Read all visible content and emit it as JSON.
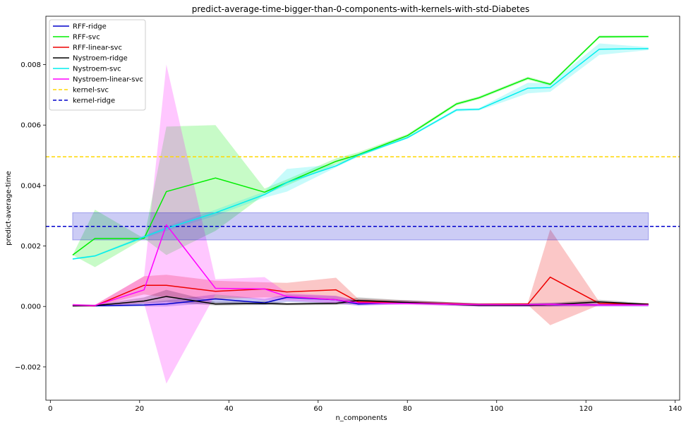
{
  "chart_data": {
    "type": "line",
    "title": "predict-average-time-bigger-than-0-components-with-kernels-with-std-Diabetes",
    "xlabel": "n_components",
    "ylabel": "predict-average-time",
    "xlim": [
      -1,
      141
    ],
    "ylim": [
      -0.0031,
      0.0096
    ],
    "xticks": [
      0,
      20,
      40,
      60,
      80,
      100,
      120,
      140
    ],
    "xtick_labels": [
      "0",
      "20",
      "40",
      "60",
      "80",
      "100",
      "120",
      "140"
    ],
    "yticks": [
      -0.002,
      0.0,
      0.002,
      0.004,
      0.006,
      0.008
    ],
    "ytick_labels": [
      "−0.002",
      "0.000",
      "0.002",
      "0.004",
      "0.006",
      "0.008"
    ],
    "grid": false,
    "legend_position": "top-left",
    "series": [
      {
        "name": "RFF-ridge",
        "color": "#0000cc",
        "style": "solid",
        "x": [
          5,
          10,
          21,
          26,
          37,
          48,
          53,
          64,
          69,
          80,
          96,
          107,
          112,
          123,
          134
        ],
        "y": [
          3e-05,
          2e-05,
          5e-05,
          8e-05,
          0.00025,
          0.00012,
          0.0003,
          0.00022,
          8e-05,
          0.00013,
          5e-05,
          4e-05,
          6e-05,
          5e-05,
          6e-05
        ],
        "lower": [
          0.0,
          0.0,
          0.0,
          0.0,
          0.00012,
          5e-05,
          0.00015,
          0.0001,
          2e-05,
          8e-05,
          0.0,
          0.0,
          0.0,
          0.0,
          0.0
        ],
        "upper": [
          8e-05,
          5e-05,
          0.00012,
          0.0002,
          0.0004,
          0.00025,
          0.0004,
          0.00035,
          0.00018,
          0.0002,
          0.0001,
          0.0001,
          0.00012,
          0.0001,
          0.0001
        ]
      },
      {
        "name": "RFF-svc",
        "color": "#00ee00",
        "style": "solid",
        "x": [
          5,
          10,
          21,
          26,
          37,
          48,
          53,
          64,
          69,
          80,
          91,
          96,
          107,
          112,
          123,
          134
        ],
        "y": [
          0.0017,
          0.00225,
          0.00225,
          0.0038,
          0.00425,
          0.00378,
          0.0041,
          0.0048,
          0.00502,
          0.00565,
          0.0067,
          0.0069,
          0.00755,
          0.00735,
          0.00892,
          0.00893
        ],
        "lower": [
          0.0017,
          0.0013,
          0.00225,
          0.0017,
          0.0025,
          0.0037,
          0.004,
          0.0047,
          0.00495,
          0.0056,
          0.00665,
          0.00685,
          0.0075,
          0.0073,
          0.00888,
          0.0089
        ],
        "upper": [
          0.0017,
          0.0032,
          0.00225,
          0.00595,
          0.006,
          0.0039,
          0.0042,
          0.0049,
          0.0051,
          0.0057,
          0.00675,
          0.00695,
          0.0076,
          0.0074,
          0.00896,
          0.00896
        ]
      },
      {
        "name": "RFF-linear-svc",
        "color": "#ee0000",
        "style": "solid",
        "x": [
          5,
          10,
          21,
          26,
          37,
          48,
          53,
          64,
          69,
          80,
          96,
          107,
          112,
          123,
          134
        ],
        "y": [
          3e-05,
          2e-05,
          0.0007,
          0.0007,
          0.0005,
          0.00058,
          0.00048,
          0.00055,
          0.00015,
          0.00013,
          7e-05,
          8e-05,
          0.00097,
          0.0001,
          8e-05
        ],
        "lower": [
          0.0,
          0.0,
          0.0004,
          0.0003,
          0.00025,
          0.0003,
          0.0003,
          0.0002,
          0.0001,
          0.0001,
          5e-05,
          5e-05,
          -0.00062,
          5e-05,
          5e-05
        ],
        "upper": [
          8e-05,
          5e-05,
          0.001,
          0.00105,
          0.00085,
          0.0008,
          0.00078,
          0.00095,
          0.00025,
          0.0002,
          0.0001,
          0.00012,
          0.00255,
          0.00015,
          0.0001
        ]
      },
      {
        "name": "Nystroem-ridge",
        "color": "#000000",
        "style": "solid",
        "x": [
          5,
          10,
          21,
          26,
          37,
          48,
          53,
          64,
          69,
          80,
          96,
          107,
          112,
          123,
          134
        ],
        "y": [
          2e-05,
          3e-05,
          0.00018,
          0.00033,
          8e-05,
          0.0001,
          8e-05,
          0.0001,
          0.0002,
          0.00013,
          4e-05,
          4e-05,
          6e-05,
          0.00015,
          7e-05
        ],
        "lower": [
          0.0,
          0.0,
          0.0001,
          0.00015,
          3e-05,
          5e-05,
          4e-05,
          5e-05,
          0.0001,
          8e-05,
          0.0,
          0.0,
          0.0,
          0.0001,
          5e-05
        ],
        "upper": [
          6e-05,
          6e-05,
          0.0003,
          0.00055,
          0.00015,
          0.00018,
          0.00012,
          0.00015,
          0.0003,
          0.0002,
          0.0001,
          0.0001,
          0.00012,
          0.00022,
          0.0001
        ]
      },
      {
        "name": "Nystroem-svc",
        "color": "#00eeee",
        "style": "solid",
        "x": [
          5,
          10,
          21,
          26,
          37,
          48,
          53,
          64,
          69,
          80,
          91,
          96,
          107,
          112,
          123,
          134
        ],
        "y": [
          0.00157,
          0.00167,
          0.0023,
          0.00258,
          0.0031,
          0.0037,
          0.0041,
          0.00465,
          0.005,
          0.00558,
          0.0065,
          0.00652,
          0.00722,
          0.00724,
          0.00851,
          0.00853
        ],
        "lower": [
          0.00155,
          0.00165,
          0.00225,
          0.0025,
          0.003,
          0.0036,
          0.0038,
          0.0046,
          0.00495,
          0.00555,
          0.00645,
          0.00648,
          0.00705,
          0.0071,
          0.00832,
          0.00848
        ],
        "upper": [
          0.0016,
          0.0017,
          0.00235,
          0.00265,
          0.0032,
          0.0038,
          0.00455,
          0.0047,
          0.00505,
          0.00562,
          0.00655,
          0.00656,
          0.0074,
          0.00738,
          0.0087,
          0.00858
        ]
      },
      {
        "name": "Nystroem-linear-svc",
        "color": "#ff00ff",
        "style": "solid",
        "x": [
          5,
          10,
          21,
          26,
          37,
          48,
          53,
          64,
          69,
          80,
          96,
          107,
          112,
          123,
          134
        ],
        "y": [
          5e-05,
          3e-05,
          0.00055,
          0.0027,
          0.0006,
          0.00058,
          0.00033,
          0.00022,
          0.00012,
          0.0001,
          6e-05,
          6e-05,
          7e-05,
          5e-05,
          5e-05
        ],
        "lower": [
          0.0,
          0.0,
          0.0001,
          -0.00255,
          0.0004,
          0.0002,
          0.0002,
          0.0001,
          5e-05,
          5e-05,
          0.0,
          0.0,
          0.0,
          0.0,
          0.0
        ],
        "upper": [
          8e-05,
          6e-05,
          0.001,
          0.008,
          0.0009,
          0.00097,
          0.00045,
          0.00035,
          0.0002,
          0.00015,
          0.0001,
          0.0001,
          0.00012,
          0.0001,
          0.0001
        ]
      },
      {
        "name": "kernel-svc",
        "color": "#ffd700",
        "style": "dashed",
        "y": 0.00495
      },
      {
        "name": "kernel-ridge",
        "color": "#0000cc",
        "style": "dashed",
        "y": 0.00265,
        "band_x": [
          5,
          134
        ],
        "band": [
          0.0022,
          0.0031
        ]
      }
    ]
  }
}
